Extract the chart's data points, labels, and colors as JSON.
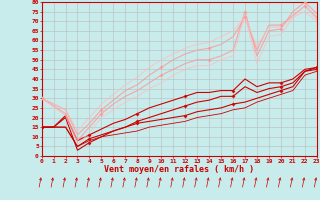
{
  "bg_color": "#c8ecec",
  "grid_color": "#aaaaaa",
  "xlabel": "Vent moyen/en rafales ( km/h )",
  "xlim": [
    0,
    23
  ],
  "ylim": [
    0,
    80
  ],
  "yticks": [
    0,
    5,
    10,
    15,
    20,
    25,
    30,
    35,
    40,
    45,
    50,
    55,
    60,
    65,
    70,
    75,
    80
  ],
  "xticks": [
    0,
    1,
    2,
    3,
    4,
    5,
    6,
    7,
    8,
    9,
    10,
    11,
    12,
    13,
    14,
    15,
    16,
    17,
    18,
    19,
    20,
    21,
    22,
    23
  ],
  "series": [
    {
      "x": [
        0,
        1,
        2,
        3,
        4,
        5,
        6,
        7,
        8,
        9,
        10,
        11,
        12,
        13,
        14,
        15,
        16,
        17,
        18,
        19,
        20,
        21,
        22,
        23
      ],
      "y": [
        15,
        15,
        15,
        5,
        9,
        11,
        13,
        15,
        17,
        18,
        19,
        20,
        21,
        23,
        24,
        25,
        27,
        28,
        30,
        32,
        34,
        36,
        44,
        46
      ],
      "color": "#cc0000",
      "alpha": 1.0,
      "lw": 0.8
    },
    {
      "x": [
        0,
        1,
        2,
        3,
        4,
        5,
        6,
        7,
        8,
        9,
        10,
        11,
        12,
        13,
        14,
        15,
        16,
        17,
        18,
        19,
        20,
        21,
        22,
        23
      ],
      "y": [
        15,
        15,
        20,
        3,
        7,
        10,
        13,
        15,
        18,
        20,
        22,
        24,
        26,
        28,
        29,
        31,
        31,
        36,
        33,
        35,
        36,
        38,
        44,
        45
      ],
      "color": "#cc0000",
      "alpha": 1.0,
      "lw": 0.8
    },
    {
      "x": [
        0,
        1,
        2,
        3,
        4,
        5,
        6,
        7,
        8,
        9,
        10,
        11,
        12,
        13,
        14,
        15,
        16,
        17,
        18,
        19,
        20,
        21,
        22,
        23
      ],
      "y": [
        15,
        15,
        21,
        8,
        11,
        14,
        17,
        19,
        22,
        25,
        27,
        29,
        31,
        33,
        33,
        34,
        34,
        40,
        36,
        38,
        38,
        40,
        45,
        46
      ],
      "color": "#cc0000",
      "alpha": 1.0,
      "lw": 0.8
    },
    {
      "x": [
        0,
        1,
        2,
        3,
        4,
        5,
        6,
        7,
        8,
        9,
        10,
        11,
        12,
        13,
        14,
        15,
        16,
        17,
        18,
        19,
        20,
        21,
        22,
        23
      ],
      "y": [
        15,
        15,
        15,
        5,
        8,
        10,
        11,
        12,
        13,
        15,
        16,
        17,
        18,
        20,
        21,
        22,
        24,
        25,
        28,
        30,
        32,
        34,
        42,
        44
      ],
      "color": "#cc0000",
      "alpha": 1.0,
      "lw": 0.6
    },
    {
      "x": [
        0,
        2,
        3,
        4,
        5,
        6,
        7,
        8,
        9,
        10,
        11,
        12,
        13,
        14,
        15,
        16,
        17,
        18,
        19,
        20,
        21,
        22,
        23
      ],
      "y": [
        30,
        22,
        8,
        15,
        22,
        27,
        31,
        34,
        38,
        42,
        45,
        48,
        50,
        50,
        52,
        55,
        75,
        52,
        65,
        66,
        75,
        80,
        74
      ],
      "color": "#ff9999",
      "alpha": 0.85,
      "lw": 0.8
    },
    {
      "x": [
        0,
        2,
        3,
        4,
        5,
        6,
        7,
        8,
        9,
        10,
        11,
        12,
        13,
        14,
        15,
        16,
        17,
        18,
        19,
        20,
        21,
        22,
        23
      ],
      "y": [
        30,
        24,
        11,
        17,
        24,
        29,
        34,
        37,
        42,
        46,
        50,
        53,
        55,
        56,
        58,
        62,
        72,
        55,
        68,
        68,
        73,
        78,
        72
      ],
      "color": "#ff9999",
      "alpha": 0.85,
      "lw": 0.8
    },
    {
      "x": [
        0,
        2,
        3,
        4,
        5,
        6,
        7,
        8,
        9,
        10,
        11,
        12,
        13,
        14,
        15,
        16,
        17,
        18,
        19,
        20,
        21,
        22,
        23
      ],
      "y": [
        30,
        24,
        13,
        20,
        27,
        32,
        37,
        41,
        46,
        50,
        53,
        56,
        58,
        59,
        62,
        65,
        72,
        57,
        67,
        67,
        72,
        75,
        70
      ],
      "color": "#ffbbbb",
      "alpha": 0.7,
      "lw": 0.8
    },
    {
      "x": [
        0,
        2,
        3,
        4,
        5,
        6,
        7,
        8,
        9,
        10,
        11,
        12,
        13,
        14,
        15,
        16,
        17,
        18,
        19,
        20,
        21,
        22,
        23
      ],
      "y": [
        30,
        21,
        6,
        12,
        20,
        24,
        28,
        31,
        35,
        38,
        42,
        45,
        47,
        47,
        50,
        52,
        73,
        48,
        62,
        63,
        72,
        78,
        71
      ],
      "color": "#ffbbbb",
      "alpha": 0.65,
      "lw": 0.8
    }
  ],
  "marker_series": [
    {
      "x": [
        0,
        4,
        8,
        12,
        16,
        20,
        23
      ],
      "y": [
        15,
        9,
        17,
        21,
        27,
        34,
        46
      ],
      "color": "#cc0000",
      "ms": 2
    },
    {
      "x": [
        0,
        4,
        8,
        12,
        16,
        20,
        23
      ],
      "y": [
        15,
        7,
        18,
        26,
        31,
        36,
        45
      ],
      "color": "#cc0000",
      "ms": 2
    },
    {
      "x": [
        0,
        4,
        8,
        12,
        16,
        20,
        23
      ],
      "y": [
        15,
        11,
        22,
        31,
        34,
        38,
        46
      ],
      "color": "#cc0000",
      "ms": 2
    },
    {
      "x": [
        0,
        5,
        10,
        14,
        17,
        20,
        22
      ],
      "y": [
        30,
        22,
        42,
        50,
        75,
        66,
        80
      ],
      "color": "#ff9999",
      "ms": 2
    },
    {
      "x": [
        0,
        5,
        10,
        14,
        17,
        20,
        22
      ],
      "y": [
        30,
        24,
        46,
        56,
        72,
        68,
        78
      ],
      "color": "#ff9999",
      "ms": 2
    }
  ],
  "arrow_color": "#cc0000",
  "axis_fontsize": 6,
  "tick_fontsize": 4.5
}
